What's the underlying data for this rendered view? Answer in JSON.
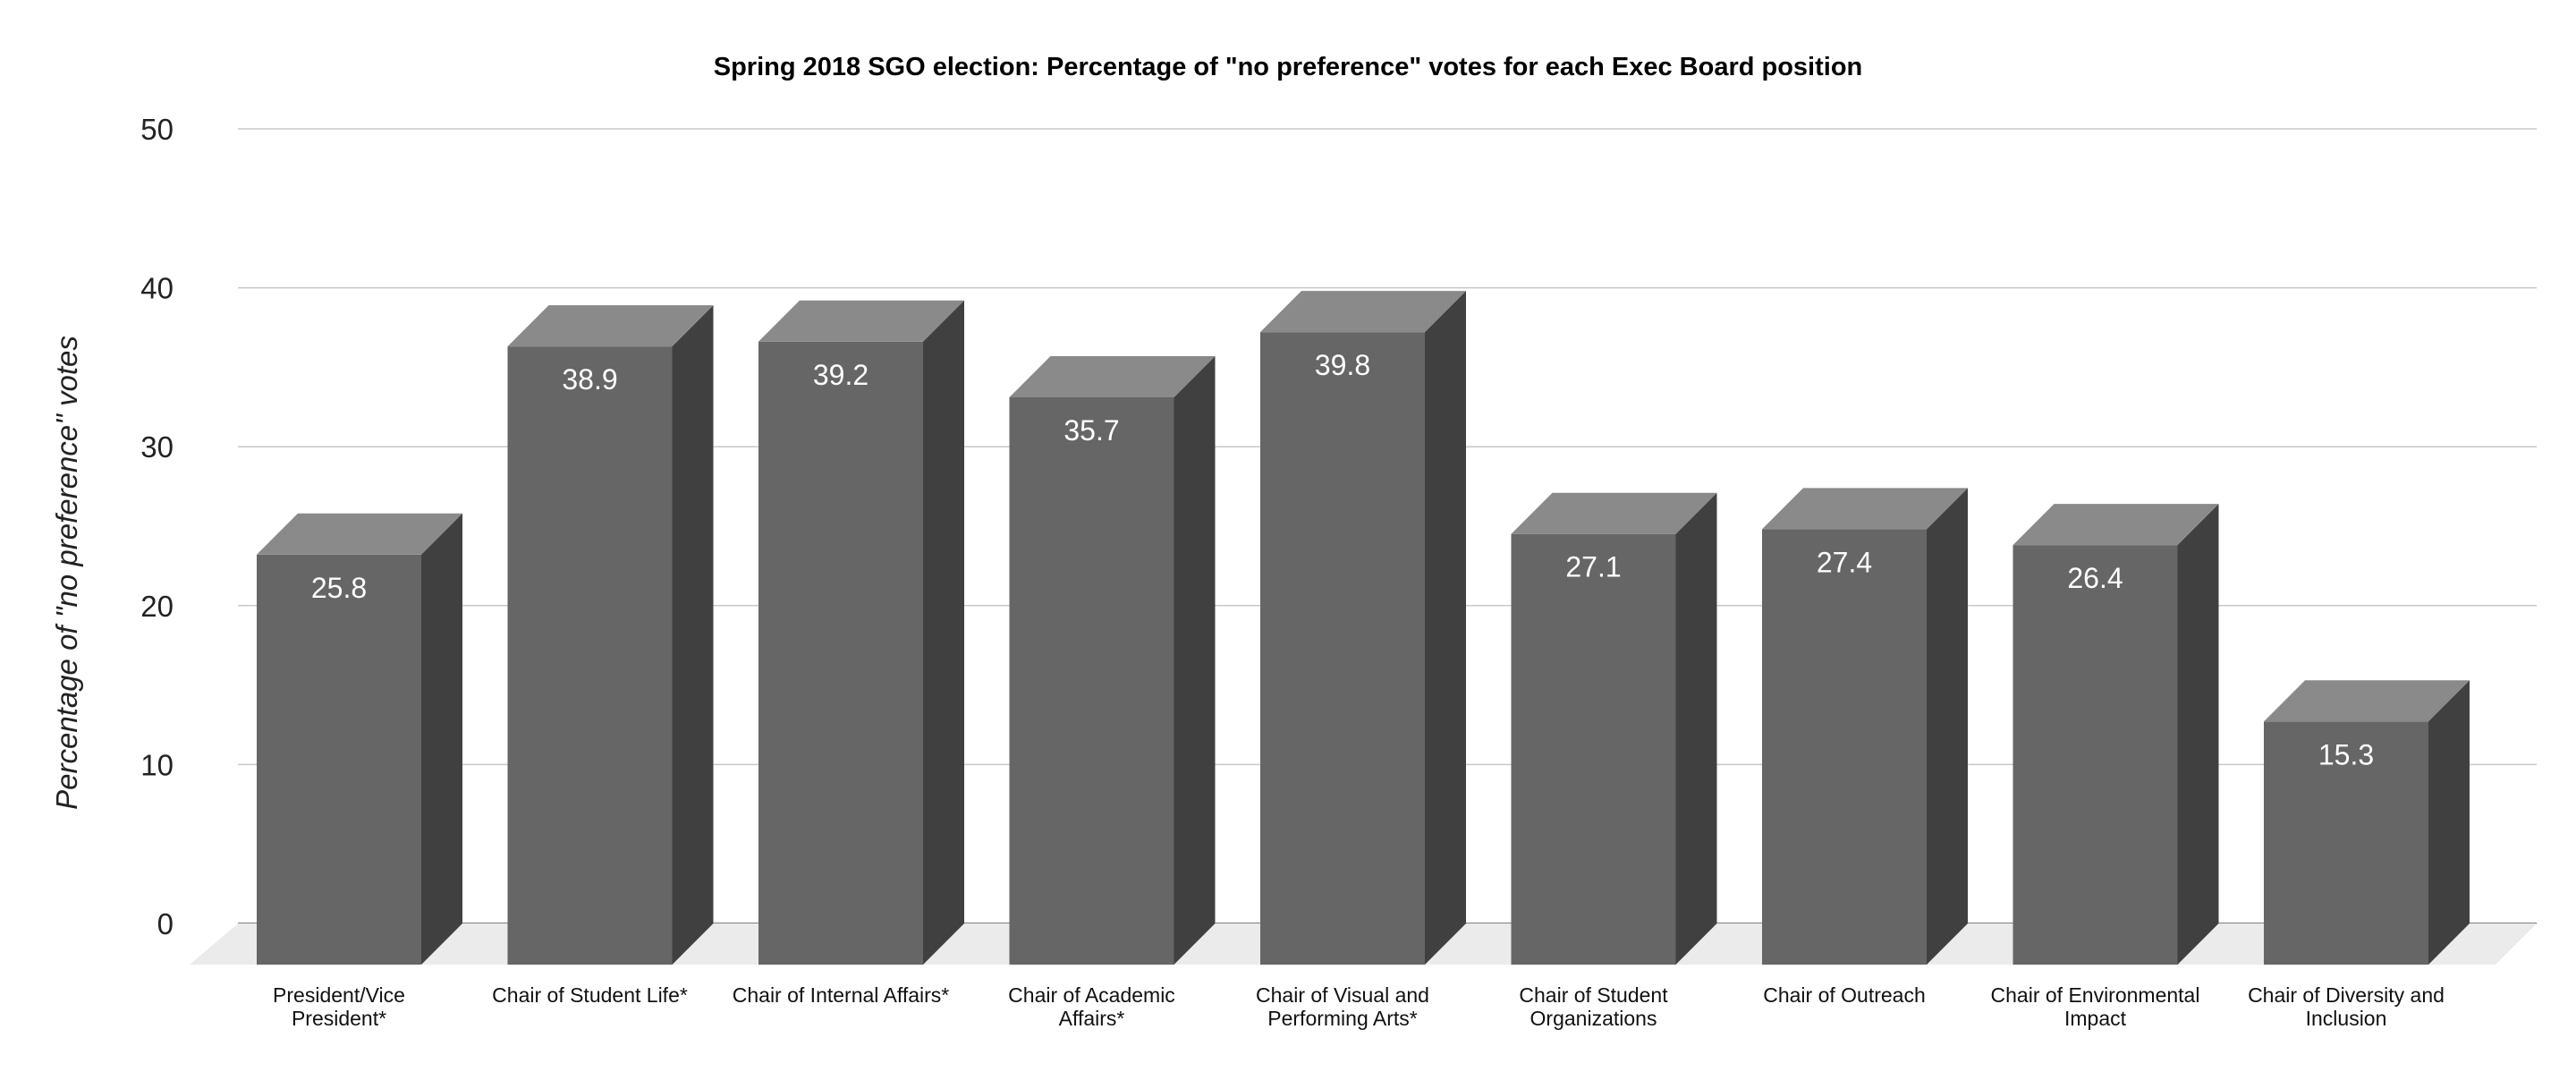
{
  "chart_data": {
    "type": "bar",
    "title": "Spring 2018 SGO election: Percentage of \"no preference\" votes for each Exec Board position",
    "xlabel": "",
    "ylabel": "Percentage of \"no preference\" votes",
    "ylim": [
      0,
      50
    ],
    "yticks": [
      0,
      10,
      20,
      30,
      40,
      50
    ],
    "grid": true,
    "legend": "none",
    "three_d": true,
    "categories": [
      [
        "President/Vice",
        "President*"
      ],
      [
        "Chair of Student Life*"
      ],
      [
        "Chair of Internal Affairs*"
      ],
      [
        "Chair of Academic",
        "Affairs*"
      ],
      [
        "Chair of Visual and",
        "Performing Arts*"
      ],
      [
        "Chair of Student",
        "Organizations"
      ],
      [
        "Chair of Outreach"
      ],
      [
        "Chair of Environmental",
        "Impact"
      ],
      [
        "Chair of Diversity and",
        "Inclusion"
      ]
    ],
    "values": [
      25.8,
      38.9,
      39.2,
      35.7,
      39.8,
      27.1,
      27.4,
      26.4,
      15.3
    ],
    "data_labels": [
      "25.8",
      "38.9",
      "39.2",
      "35.7",
      "39.8",
      "27.1",
      "27.4",
      "26.4",
      "15.3"
    ],
    "colors": {
      "bar_front": "#666666",
      "bar_top": "#8a8a8a",
      "bar_side": "#404040",
      "floor": "#ebebeb",
      "gridline": "#c8c8c8"
    }
  }
}
